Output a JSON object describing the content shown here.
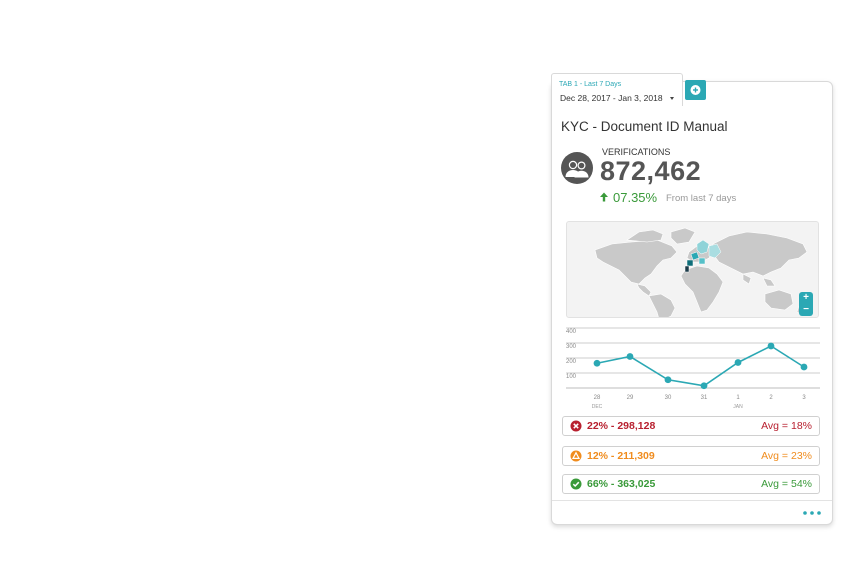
{
  "tab": {
    "title": "TAB 1 - Last 7 Days",
    "range": "Dec 28, 2017 - Jan 3, 2018"
  },
  "card": {
    "title": "KYC - Document ID Manual",
    "verifications_label": "VERIFICATIONS",
    "verifications_value": "872,462",
    "trend_pct": "07.35%",
    "trend_from": "From last 7 days"
  },
  "map": {
    "zoom_in": "+",
    "zoom_out": "−"
  },
  "chart_data": {
    "type": "line",
    "x": [
      "28",
      "29",
      "30",
      "31",
      "1",
      "2",
      "3"
    ],
    "month_labels": [
      "DEC",
      "JAN"
    ],
    "y_ticks": [
      "100",
      "200",
      "300",
      "400"
    ],
    "values": [
      165,
      210,
      55,
      15,
      170,
      280,
      140
    ],
    "ylim": [
      0,
      400
    ],
    "grid": true
  },
  "stats": [
    {
      "main": "22% - 298,128",
      "avg": "Avg = 18%",
      "color": "#b8202f",
      "icon": "x-circle-icon"
    },
    {
      "main": "12% - 211,309",
      "avg": "Avg = 23%",
      "color": "#f08c1e",
      "icon": "warning-circle-icon"
    },
    {
      "main": "66% - 363,025",
      "avg": "Avg = 54%",
      "color": "#3a9a3a",
      "icon": "check-circle-icon"
    }
  ],
  "colors": {
    "accent": "#2ba8b4",
    "positive": "#3a9a3a",
    "danger": "#b8202f",
    "warning": "#f08c1e"
  }
}
